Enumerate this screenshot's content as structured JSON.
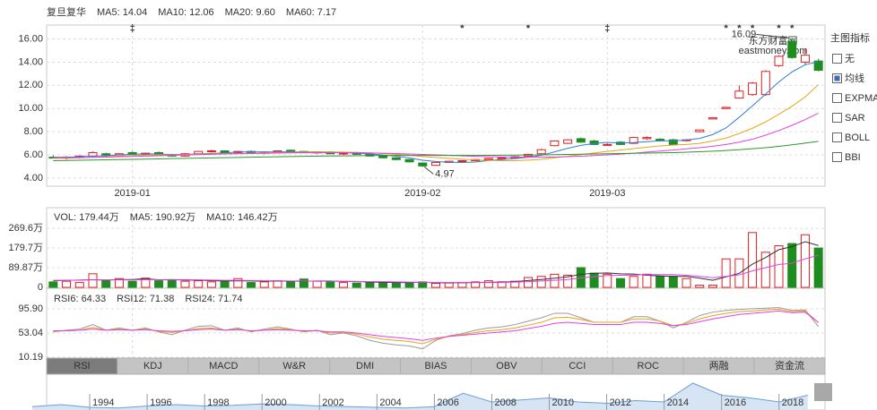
{
  "chart_data": [
    {
      "type": "candlestick",
      "title": "复旦复华",
      "categories": [
        null,
        null,
        null,
        null,
        null,
        null,
        "2019-01",
        null,
        null,
        null,
        null,
        null,
        null,
        null,
        null,
        null,
        null,
        null,
        null,
        null,
        null,
        null,
        null,
        null,
        null,
        null,
        null,
        null,
        "2019-02",
        null,
        null,
        null,
        null,
        null,
        null,
        null,
        null,
        null,
        null,
        null,
        null,
        null,
        "2019-03",
        null,
        null,
        null,
        null,
        null,
        null,
        null,
        null,
        null,
        null,
        null,
        null,
        null,
        null,
        null,
        null
      ],
      "open": [
        5.8,
        5.75,
        5.8,
        5.9,
        6.1,
        6.0,
        6.2,
        6.05,
        6.2,
        6.0,
        5.9,
        6.1,
        6.3,
        6.35,
        6.2,
        6.3,
        6.15,
        6.25,
        6.4,
        6.3,
        6.2,
        6.25,
        6.1,
        6.2,
        6.05,
        5.9,
        5.75,
        5.6,
        5.3,
        5.1,
        5.35,
        5.45,
        5.5,
        5.6,
        5.7,
        5.75,
        5.9,
        6.1,
        6.8,
        7.0,
        7.4,
        7.2,
        6.9,
        7.1,
        7.0,
        7.4,
        7.35,
        7.3,
        7.25,
        8.0,
        9.1,
        10.0,
        10.9,
        11.2,
        11.2,
        13.7,
        15.8,
        14.0,
        14.1
      ],
      "high": [
        5.95,
        5.9,
        5.95,
        6.3,
        6.2,
        6.15,
        6.3,
        6.2,
        6.3,
        6.1,
        6.15,
        6.35,
        6.45,
        6.4,
        6.35,
        6.4,
        6.3,
        6.4,
        6.45,
        6.35,
        6.3,
        6.3,
        6.2,
        6.25,
        6.1,
        5.95,
        5.8,
        5.65,
        5.35,
        5.4,
        5.5,
        5.55,
        5.65,
        5.75,
        5.8,
        5.9,
        6.1,
        6.55,
        7.25,
        7.35,
        7.5,
        7.3,
        7.0,
        7.2,
        7.55,
        7.6,
        7.45,
        7.4,
        7.35,
        8.15,
        9.2,
        10.1,
        12.0,
        12.3,
        13.3,
        14.6,
        16.09,
        15.2,
        14.3
      ],
      "low": [
        5.7,
        5.6,
        5.7,
        5.85,
        5.9,
        5.95,
        6.0,
        5.95,
        5.95,
        5.85,
        5.85,
        6.05,
        6.2,
        6.15,
        6.1,
        6.1,
        6.05,
        6.2,
        6.25,
        6.15,
        6.1,
        6.05,
        6.0,
        6.0,
        5.85,
        5.7,
        5.55,
        5.35,
        4.97,
        5.05,
        5.3,
        5.4,
        5.45,
        5.55,
        5.6,
        5.7,
        5.85,
        6.05,
        6.75,
        6.95,
        7.05,
        6.85,
        6.8,
        6.85,
        6.95,
        7.3,
        7.15,
        6.85,
        7.15,
        7.95,
        9.1,
        10.0,
        10.85,
        11.1,
        11.1,
        13.6,
        14.3,
        13.8,
        13.2
      ],
      "close": [
        5.75,
        5.8,
        5.9,
        6.2,
        6.0,
        6.1,
        6.05,
        6.15,
        6.0,
        5.9,
        6.1,
        6.3,
        6.35,
        6.2,
        6.3,
        6.15,
        6.25,
        6.35,
        6.3,
        6.2,
        6.25,
        6.1,
        6.15,
        6.05,
        5.9,
        5.75,
        5.6,
        5.4,
        5.05,
        5.35,
        5.45,
        5.5,
        5.6,
        5.7,
        5.75,
        5.85,
        6.05,
        6.45,
        7.2,
        7.3,
        7.1,
        6.9,
        6.9,
        6.9,
        7.5,
        7.5,
        7.25,
        6.9,
        7.3,
        8.15,
        9.2,
        10.1,
        11.5,
        12.2,
        13.2,
        14.5,
        14.4,
        14.6,
        13.3
      ],
      "up_color": "#e02020",
      "down_color": "#1e8c1e",
      "series": [
        {
          "name": "MA5: 14.04",
          "color": "#2f7ed8",
          "values": [
            5.8,
            5.8,
            5.85,
            5.9,
            5.93,
            6.0,
            6.05,
            6.1,
            6.06,
            6.04,
            6.04,
            6.09,
            6.13,
            6.17,
            6.25,
            6.26,
            6.25,
            6.25,
            6.27,
            6.25,
            6.27,
            6.24,
            6.2,
            6.15,
            6.09,
            5.99,
            5.89,
            5.74,
            5.54,
            5.43,
            5.37,
            5.35,
            5.39,
            5.52,
            5.6,
            5.68,
            5.79,
            5.96,
            6.26,
            6.57,
            6.82,
            6.99,
            7.08,
            7.02,
            7.06,
            7.14,
            7.21,
            7.21,
            7.29,
            7.42,
            7.76,
            8.33,
            9.25,
            10.23,
            11.24,
            12.3,
            13.16,
            13.78,
            14.04
          ]
        },
        {
          "name": "MA10: 12.06",
          "color": "#e8a317",
          "values": [
            5.7,
            5.72,
            5.75,
            5.8,
            5.85,
            5.9,
            5.95,
            5.98,
            6.0,
            6.0,
            6.03,
            6.06,
            6.09,
            6.11,
            6.13,
            6.15,
            6.17,
            6.2,
            6.22,
            6.24,
            6.25,
            6.25,
            6.24,
            6.22,
            6.18,
            6.12,
            6.05,
            5.97,
            5.86,
            5.78,
            5.7,
            5.63,
            5.57,
            5.53,
            5.5,
            5.5,
            5.55,
            5.62,
            5.75,
            5.88,
            6.03,
            6.17,
            6.3,
            6.42,
            6.54,
            6.66,
            6.78,
            6.85,
            6.9,
            7.0,
            7.2,
            7.45,
            7.85,
            8.3,
            8.85,
            9.5,
            10.2,
            11.0,
            12.06
          ]
        },
        {
          "name": "MA20: 9.60",
          "color": "#e43fe4",
          "values": [
            5.75,
            5.76,
            5.77,
            5.79,
            5.81,
            5.84,
            5.87,
            5.9,
            5.93,
            5.96,
            5.99,
            6.02,
            6.05,
            6.08,
            6.1,
            6.12,
            6.14,
            6.16,
            6.18,
            6.19,
            6.2,
            6.2,
            6.2,
            6.19,
            6.17,
            6.15,
            6.12,
            6.08,
            6.04,
            6.0,
            5.96,
            5.92,
            5.88,
            5.85,
            5.83,
            5.81,
            5.8,
            5.8,
            5.82,
            5.85,
            5.89,
            5.94,
            6.0,
            6.07,
            6.15,
            6.24,
            6.33,
            6.42,
            6.52,
            6.62,
            6.75,
            6.9,
            7.1,
            7.35,
            7.7,
            8.1,
            8.55,
            9.05,
            9.6
          ]
        },
        {
          "name": "MA60: 7.17",
          "color": "#2a9a2a",
          "values": [
            5.5,
            5.52,
            5.54,
            5.56,
            5.58,
            5.6,
            5.62,
            5.64,
            5.66,
            5.68,
            5.7,
            5.72,
            5.74,
            5.76,
            5.78,
            5.8,
            5.82,
            5.84,
            5.86,
            5.88,
            5.9,
            5.91,
            5.92,
            5.93,
            5.94,
            5.95,
            5.95,
            5.95,
            5.95,
            5.95,
            5.95,
            5.95,
            5.95,
            5.96,
            5.97,
            5.98,
            5.99,
            6.0,
            6.02,
            6.04,
            6.06,
            6.08,
            6.1,
            6.12,
            6.14,
            6.16,
            6.18,
            6.2,
            6.23,
            6.27,
            6.32,
            6.38,
            6.45,
            6.53,
            6.62,
            6.74,
            6.87,
            7.02,
            7.17
          ]
        }
      ],
      "ylim": [
        3.3,
        17.2
      ],
      "yticks": [
        {
          "value": 16,
          "label": "16.00"
        },
        {
          "value": 14,
          "label": "14.00"
        },
        {
          "value": 12,
          "label": "12.00"
        },
        {
          "value": 10,
          "label": "10.00"
        },
        {
          "value": 8,
          "label": "8.00"
        },
        {
          "value": 6,
          "label": "6.00"
        },
        {
          "value": 4,
          "label": "4.00"
        }
      ],
      "grid": true,
      "annotations": [
        {
          "index": 56,
          "value": 16.09
        },
        {
          "index": 28,
          "value": 4.97
        }
      ],
      "event_markers": [
        {
          "index": 6,
          "label": "‡"
        },
        {
          "index": 31,
          "label": "*"
        },
        {
          "index": 36,
          "label": "*"
        },
        {
          "index": 42,
          "label": "‡"
        },
        {
          "index": 51,
          "label": "*"
        },
        {
          "index": 52,
          "label": "*"
        },
        {
          "index": 53,
          "label": "*"
        },
        {
          "index": 55,
          "label": "*"
        },
        {
          "index": 56,
          "label": "*"
        }
      ],
      "watermark": [
        "东方财富网",
        "eastmoney.com"
      ]
    },
    {
      "type": "bar",
      "name": "VOL: 179.44万",
      "legend_color": "#cc33cc",
      "values": [
        25,
        28,
        22,
        62,
        30,
        40,
        28,
        42,
        30,
        35,
        28,
        30,
        25,
        28,
        40,
        22,
        25,
        30,
        25,
        38,
        28,
        25,
        22,
        20,
        25,
        22,
        20,
        22,
        25,
        18,
        20,
        22,
        25,
        30,
        25,
        28,
        45,
        50,
        60,
        55,
        90,
        65,
        60,
        40,
        50,
        60,
        50,
        50,
        40,
        10,
        10,
        130,
        130,
        250,
        160,
        190,
        200,
        240,
        179.44
      ],
      "series": [
        {
          "name": "MA5: 190.92万",
          "color": "#333333",
          "values": [
            30,
            32,
            33,
            35,
            33,
            36,
            36,
            40,
            34,
            35,
            33,
            33,
            30,
            29,
            30,
            29,
            28,
            29,
            28,
            28,
            29,
            29,
            27,
            27,
            24,
            23,
            22,
            22,
            23,
            21,
            21,
            21,
            22,
            23,
            24,
            26,
            31,
            36,
            42,
            48,
            60,
            64,
            66,
            62,
            61,
            55,
            52,
            50,
            50,
            42,
            32,
            48,
            64,
            106,
            136,
            172,
            186,
            208,
            190.92
          ]
        },
        {
          "name": "MA10: 146.42万",
          "color": "#e43fe4",
          "values": [
            32,
            32,
            33,
            34,
            34,
            34,
            34,
            35,
            35,
            35,
            35,
            34,
            33,
            32,
            32,
            31,
            30,
            30,
            29,
            29,
            28,
            28,
            28,
            27,
            26,
            26,
            25,
            24,
            23,
            22,
            22,
            22,
            22,
            22,
            22,
            24,
            26,
            29,
            32,
            36,
            43,
            49,
            54,
            55,
            56,
            58,
            58,
            58,
            55,
            50,
            44,
            50,
            57,
            75,
            90,
            104,
            110,
            130,
            146.42
          ]
        }
      ],
      "ylim": [
        0,
        359.5
      ],
      "yticks": [
        {
          "value": 269.6,
          "label": "269.6万"
        },
        {
          "value": 179.7,
          "label": "179.7万"
        },
        {
          "value": 89.87,
          "label": "89.87万"
        },
        0
      ],
      "grid": true
    },
    {
      "type": "line",
      "series": [
        {
          "name": "RSI6: 64.33",
          "color": "#9a9a9a",
          "values": [
            55,
            58,
            60,
            68,
            58,
            62,
            58,
            62,
            55,
            50,
            58,
            65,
            66,
            58,
            62,
            55,
            60,
            64,
            60,
            55,
            58,
            50,
            53,
            48,
            40,
            35,
            32,
            30,
            25,
            40,
            48,
            52,
            58,
            62,
            64,
            68,
            74,
            80,
            88,
            88,
            80,
            72,
            72,
            72,
            82,
            82,
            74,
            62,
            72,
            84,
            90,
            93,
            95,
            96,
            97,
            98,
            93,
            94,
            64.33
          ]
        },
        {
          "name": "RSI12: 71.38",
          "color": "#e8a317",
          "values": [
            56,
            57,
            58,
            63,
            58,
            60,
            58,
            60,
            56,
            54,
            57,
            61,
            62,
            58,
            60,
            56,
            58,
            61,
            59,
            56,
            57,
            53,
            54,
            51,
            46,
            42,
            40,
            38,
            34,
            42,
            47,
            50,
            54,
            57,
            59,
            62,
            67,
            72,
            80,
            81,
            77,
            72,
            72,
            72,
            78,
            78,
            74,
            66,
            70,
            78,
            84,
            88,
            91,
            92,
            94,
            95,
            91,
            92,
            71.38
          ]
        },
        {
          "name": "RSI24: 71.74",
          "color": "#e43fe4",
          "values": [
            57,
            57,
            58,
            60,
            58,
            59,
            58,
            59,
            57,
            56,
            57,
            59,
            60,
            58,
            59,
            57,
            58,
            59,
            58,
            57,
            57,
            55,
            55,
            53,
            50,
            47,
            45,
            43,
            40,
            44,
            47,
            49,
            51,
            53,
            55,
            57,
            61,
            65,
            70,
            72,
            70,
            68,
            68,
            68,
            72,
            72,
            70,
            66,
            68,
            73,
            78,
            82,
            86,
            88,
            90,
            92,
            89,
            90,
            71.74
          ]
        }
      ],
      "ylim": [
        8.6,
        126
      ],
      "yticks": [
        {
          "value": 95.9,
          "label": "95.90"
        },
        53.04,
        10.19
      ],
      "grid": true
    },
    {
      "type": "area",
      "color": "#6b9fd6",
      "fill": "#d6e4f4",
      "x": [
        1992,
        1993,
        1994,
        1995,
        1996,
        1997,
        1998,
        1999,
        2000,
        2001,
        2002,
        2003,
        2004,
        2005,
        2006,
        2007,
        2008,
        2009,
        2010,
        2011,
        2012,
        2013,
        2014,
        2015,
        2016,
        2017,
        2018,
        2019
      ],
      "values": [
        5,
        8,
        4,
        3,
        6,
        8,
        6,
        7,
        9,
        8,
        6,
        5,
        4,
        3,
        5,
        25,
        12,
        15,
        18,
        12,
        10,
        14,
        12,
        40,
        22,
        18,
        12,
        22
      ],
      "xlim": [
        1992.5,
        2019.6
      ],
      "xticks": [
        1994,
        1996,
        1998,
        2000,
        2002,
        2004,
        2006,
        2008,
        2010,
        2012,
        2014,
        2016,
        2018
      ]
    }
  ],
  "main_indicator_menu": {
    "title": "主图指标",
    "options": [
      "无",
      "均线",
      "EXPMA",
      "SAR",
      "BOLL",
      "BBI"
    ],
    "selected": 1
  },
  "indicator_tabs": {
    "items": [
      "RSI",
      "KDJ",
      "MACD",
      "W&R",
      "DMI",
      "BIAS",
      "OBV",
      "CCI",
      "ROC",
      "两融",
      "资金流"
    ],
    "active": 0
  }
}
